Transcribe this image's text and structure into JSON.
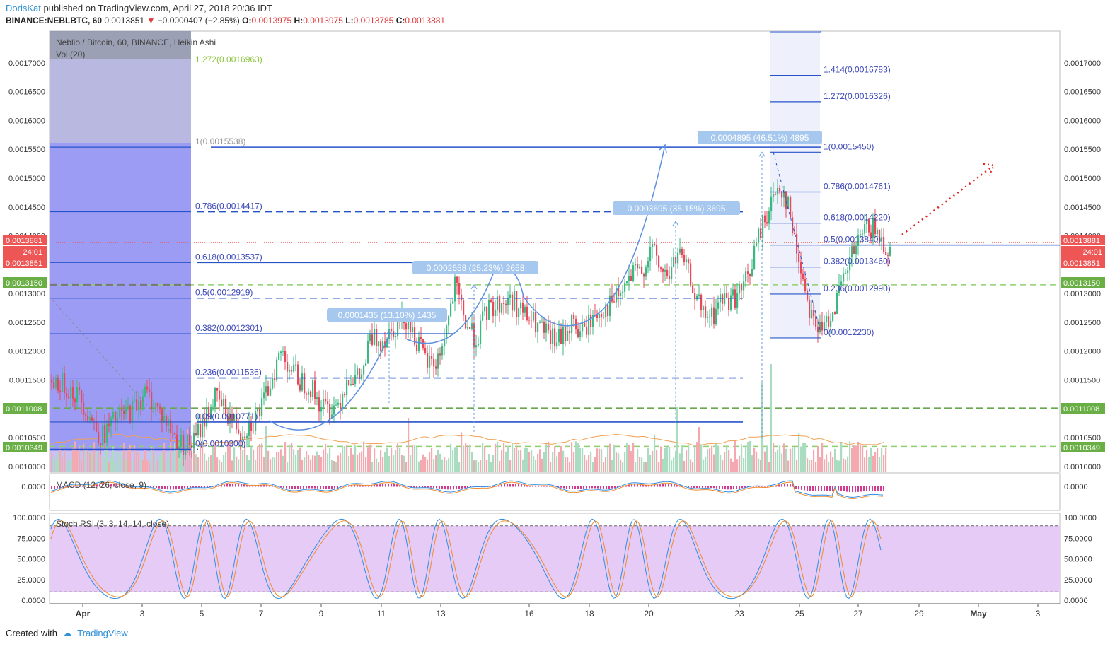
{
  "header": {
    "author": "DorisKat",
    "published": "published on TradingView.com, April 27, 2018 20:36 IDT",
    "symbol": "BINANCE:NEBLBTC, 60",
    "last": "0.0013851",
    "change": "−0.0000407 (−2.85%)",
    "o": "0.0013975",
    "h": "0.0013975",
    "l": "0.0013785",
    "c": "0.0013881"
  },
  "legend": {
    "title": "Neblio / Bitcoin, 60, BINANCE, Heikin Ashi",
    "volume": "Vol (20)",
    "macd": "MACD (12, 26, close, 9)",
    "stoch": "Stoch RSI (3, 3, 14, 14, close)"
  },
  "footer": {
    "created": "Created with",
    "brand": "TradingView"
  },
  "colors": {
    "up": "#3eb883",
    "down": "#e8495a",
    "fib": "#2753c9",
    "fibText": "#3b47b8",
    "green": "#7fbf5a",
    "accent": "#ee5555",
    "measure": "#a6c8ee"
  },
  "chart_data": {
    "type": "candlestick",
    "price_axis": {
      "min": 0.00099,
      "max": 0.001755,
      "ticks": [
        "0.0017000",
        "0.0016500",
        "0.0016000",
        "0.0015500",
        "0.0015000",
        "0.0014500",
        "0.0014000",
        "0.0013500",
        "0.0013000",
        "0.0012500",
        "0.0012000",
        "0.0011500",
        "0.0010500",
        "0.0010000"
      ],
      "badges": [
        {
          "value": "0.0013881",
          "color": "#ee5555"
        },
        {
          "value": "24:01",
          "color": "#ee5555"
        },
        {
          "value": "0.0013851",
          "color": "#ee5555"
        },
        {
          "value": "0.0013150",
          "color": "#6aaf45"
        },
        {
          "value": "0.0011008",
          "color": "#6aaf45"
        },
        {
          "value": "0.0010349",
          "color": "#6aaf45"
        }
      ]
    },
    "time_axis": [
      "Apr",
      "3",
      "5",
      "7",
      "9",
      "11",
      "13",
      "16",
      "18",
      "20",
      "23",
      "25",
      "27",
      "29",
      "May",
      "3"
    ],
    "fib_left": [
      {
        "label": "1.272(0.0016963)",
        "value": 0.0016963,
        "color": "#8dc540"
      },
      {
        "label": "1(0.0015538)",
        "value": 0.0015538,
        "color": "#999999"
      },
      {
        "label": "0.786(0.0014417)",
        "value": 0.0014417
      },
      {
        "label": "0.618(0.0013537)",
        "value": 0.0013537
      },
      {
        "label": "0.5(0.0012919)",
        "value": 0.0012919
      },
      {
        "label": "0.382(0.0012301)",
        "value": 0.0012301
      },
      {
        "label": "0.236(0.0011536)",
        "value": 0.0011536
      },
      {
        "label": "0.09(0.0010771)",
        "value": 0.0010771
      },
      {
        "label": "0(0.0010300)",
        "value": 0.00103
      }
    ],
    "fib_right": [
      {
        "label": "1.414(0.0016783)",
        "value": 0.0016783
      },
      {
        "label": "1.272(0.0016326)",
        "value": 0.0016326
      },
      {
        "label": "1(0.0015450)",
        "value": 0.001545
      },
      {
        "label": "0.786(0.0014761)",
        "value": 0.0014761
      },
      {
        "label": "0.618(0.0014220)",
        "value": 0.001422
      },
      {
        "label": "0.5(0.0013840)",
        "value": 0.001384
      },
      {
        "label": "0.382(0.0013460)",
        "value": 0.001346
      },
      {
        "label": "0.236(0.0012990)",
        "value": 0.001299
      },
      {
        "label": "0(0.0012230)",
        "value": 0.001223
      }
    ],
    "horizontal_levels": [
      0.001315,
      0.0011008,
      0.0010349
    ],
    "current_price": 0.0013881,
    "measures": [
      {
        "label": "0.0001435 (13.10%) 1435",
        "from": 0.00111,
        "to": 0.001236
      },
      {
        "label": "0.0002658 (25.23%) 2658",
        "from": 0.00106,
        "to": 0.001315
      },
      {
        "label": "0.0003695 (35.15%) 3695",
        "from": 0.001075,
        "to": 0.001425
      },
      {
        "label": "0.0004895 (46.51%) 4895",
        "from": 0.00105,
        "to": 0.001545
      }
    ],
    "series_path": [
      [
        0,
        0.00115
      ],
      [
        20,
        0.00114
      ],
      [
        40,
        0.00112
      ],
      [
        70,
        0.00105
      ],
      [
        90,
        0.00108
      ],
      [
        115,
        0.0011
      ],
      [
        130,
        0.00113
      ],
      [
        145,
        0.00111
      ],
      [
        160,
        0.00108
      ],
      [
        180,
        0.00104
      ],
      [
        200,
        0.00104
      ],
      [
        215,
        0.00108
      ],
      [
        230,
        0.00112
      ],
      [
        250,
        0.00109
      ],
      [
        268,
        0.00106
      ],
      [
        285,
        0.00108
      ],
      [
        300,
        0.00111
      ],
      [
        312,
        0.00116
      ],
      [
        325,
        0.0012
      ],
      [
        338,
        0.00117
      ],
      [
        350,
        0.00115
      ],
      [
        365,
        0.00114
      ],
      [
        378,
        0.00111
      ],
      [
        390,
        0.0011
      ],
      [
        405,
        0.00111
      ],
      [
        420,
        0.00116
      ],
      [
        430,
        0.00115
      ],
      [
        440,
        0.00116
      ],
      [
        450,
        0.00122
      ],
      [
        468,
        0.00122
      ],
      [
        480,
        0.00124
      ],
      [
        500,
        0.00126
      ],
      [
        515,
        0.00122
      ],
      [
        530,
        0.00118
      ],
      [
        545,
        0.00118
      ],
      [
        558,
        0.00124
      ],
      [
        570,
        0.00131
      ],
      [
        585,
        0.00125
      ],
      [
        600,
        0.00122
      ],
      [
        615,
        0.00127
      ],
      [
        630,
        0.00128
      ],
      [
        650,
        0.00129
      ],
      [
        670,
        0.00126
      ],
      [
        690,
        0.00124
      ],
      [
        705,
        0.00122
      ],
      [
        720,
        0.00122
      ],
      [
        735,
        0.00125
      ],
      [
        748,
        0.00123
      ],
      [
        760,
        0.00125
      ],
      [
        775,
        0.00127
      ],
      [
        790,
        0.00128
      ],
      [
        805,
        0.0013
      ],
      [
        820,
        0.00133
      ],
      [
        835,
        0.00134
      ],
      [
        848,
        0.00138
      ],
      [
        860,
        0.00134
      ],
      [
        872,
        0.00133
      ],
      [
        885,
        0.00137
      ],
      [
        898,
        0.00134
      ],
      [
        910,
        0.0013
      ],
      [
        920,
        0.00126
      ],
      [
        935,
        0.00126
      ],
      [
        945,
        0.00129
      ],
      [
        960,
        0.00129
      ],
      [
        972,
        0.0013
      ],
      [
        985,
        0.00133
      ],
      [
        995,
        0.00138
      ],
      [
        1005,
        0.00142
      ],
      [
        1015,
        0.00145
      ],
      [
        1028,
        0.00149
      ],
      [
        1040,
        0.00146
      ],
      [
        1050,
        0.00139
      ],
      [
        1060,
        0.00134
      ],
      [
        1070,
        0.00128
      ],
      [
        1080,
        0.00125
      ],
      [
        1088,
        0.00123
      ],
      [
        1098,
        0.00126
      ],
      [
        1110,
        0.00129
      ],
      [
        1122,
        0.00133
      ],
      [
        1132,
        0.00137
      ],
      [
        1142,
        0.00139
      ],
      [
        1155,
        0.00142
      ],
      [
        1168,
        0.0014
      ],
      [
        1180,
        0.00138
      ]
    ]
  }
}
